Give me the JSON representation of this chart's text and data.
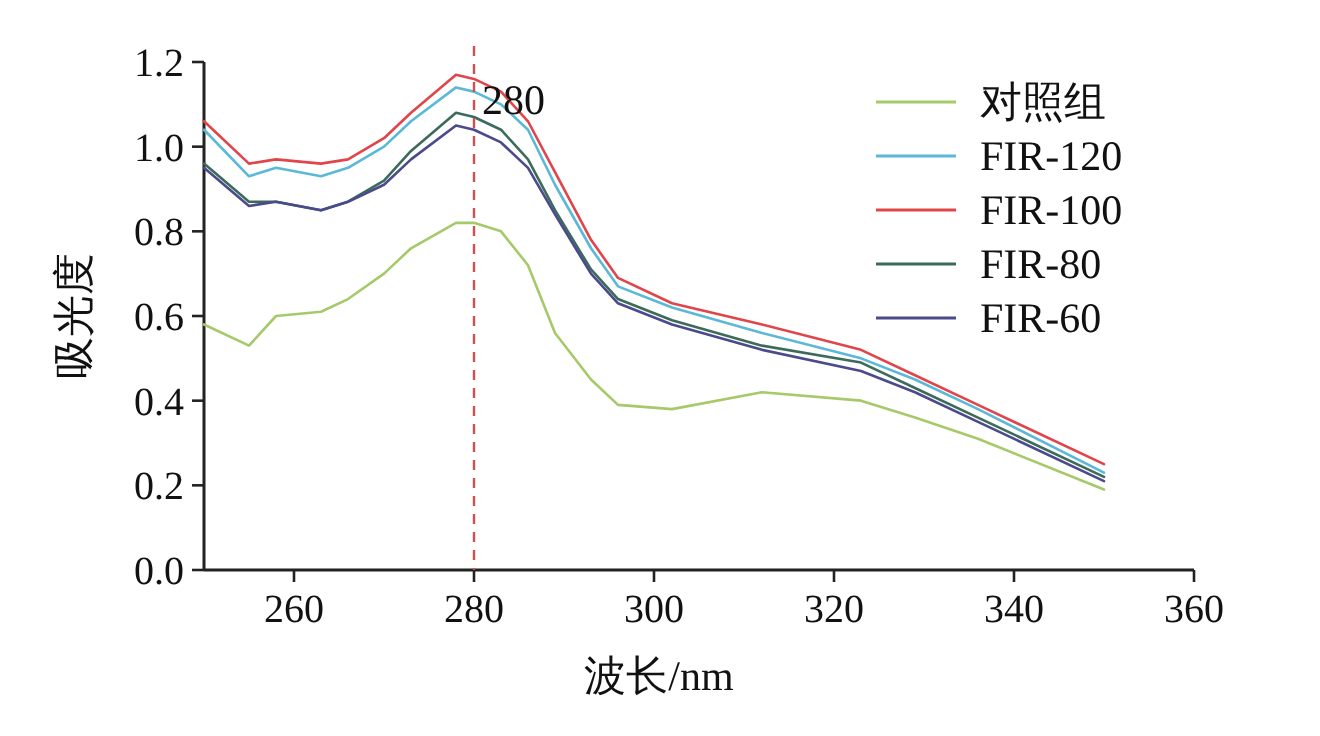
{
  "chart_data": {
    "type": "line",
    "xlabel": "波长/nm",
    "ylabel": "吸光度",
    "x": [
      250,
      255,
      258,
      263,
      266,
      270,
      273,
      278,
      280,
      283,
      286,
      289,
      293,
      296,
      302,
      312,
      323,
      329,
      336,
      350
    ],
    "series": [
      {
        "name": "对照组",
        "color": "#a6c96a",
        "values": [
          0.58,
          0.53,
          0.6,
          0.61,
          0.64,
          0.7,
          0.76,
          0.82,
          0.82,
          0.8,
          0.72,
          0.56,
          0.45,
          0.39,
          0.38,
          0.42,
          0.4,
          0.36,
          0.31,
          0.19
        ]
      },
      {
        "name": "FIR-120",
        "color": "#5bb8d8",
        "values": [
          1.04,
          0.93,
          0.95,
          0.93,
          0.95,
          1.0,
          1.06,
          1.14,
          1.13,
          1.1,
          1.04,
          0.91,
          0.76,
          0.67,
          0.62,
          0.56,
          0.5,
          0.45,
          0.38,
          0.23
        ]
      },
      {
        "name": "FIR-100",
        "color": "#e0454a",
        "values": [
          1.06,
          0.96,
          0.97,
          0.96,
          0.97,
          1.02,
          1.08,
          1.17,
          1.16,
          1.13,
          1.06,
          0.94,
          0.78,
          0.69,
          0.63,
          0.58,
          0.52,
          0.46,
          0.39,
          0.25
        ]
      },
      {
        "name": "FIR-80",
        "color": "#3c6b5c",
        "values": [
          0.96,
          0.87,
          0.87,
          0.85,
          0.87,
          0.92,
          0.99,
          1.08,
          1.07,
          1.04,
          0.97,
          0.85,
          0.71,
          0.64,
          0.59,
          0.53,
          0.49,
          0.43,
          0.36,
          0.22
        ]
      },
      {
        "name": "FIR-60",
        "color": "#4a4a8c",
        "values": [
          0.95,
          0.86,
          0.87,
          0.85,
          0.87,
          0.91,
          0.97,
          1.05,
          1.04,
          1.01,
          0.95,
          0.84,
          0.7,
          0.63,
          0.58,
          0.52,
          0.47,
          0.42,
          0.35,
          0.21
        ]
      }
    ],
    "xlim": [
      250,
      360
    ],
    "xticks": [
      260,
      280,
      300,
      320,
      340,
      360
    ],
    "ylim": [
      0,
      1.2
    ],
    "yticks": [
      {
        "value": 0,
        "label": "0.0"
      },
      {
        "value": 0.2,
        "label": "0.2"
      },
      {
        "value": 0.4,
        "label": "0.4"
      },
      {
        "value": 0.6,
        "label": "0.6"
      },
      {
        "value": 0.8,
        "label": "0.8"
      },
      {
        "value": 1.0,
        "label": "1.0"
      },
      {
        "value": 1.2,
        "label": "1.2"
      }
    ],
    "ref_lines": [
      {
        "axis": "x",
        "value": 280,
        "label": "280",
        "color": "#d0504f",
        "line_style": "dashed"
      }
    ],
    "legend": "top right",
    "grid": false,
    "marker": "none",
    "line_style": "solid"
  }
}
